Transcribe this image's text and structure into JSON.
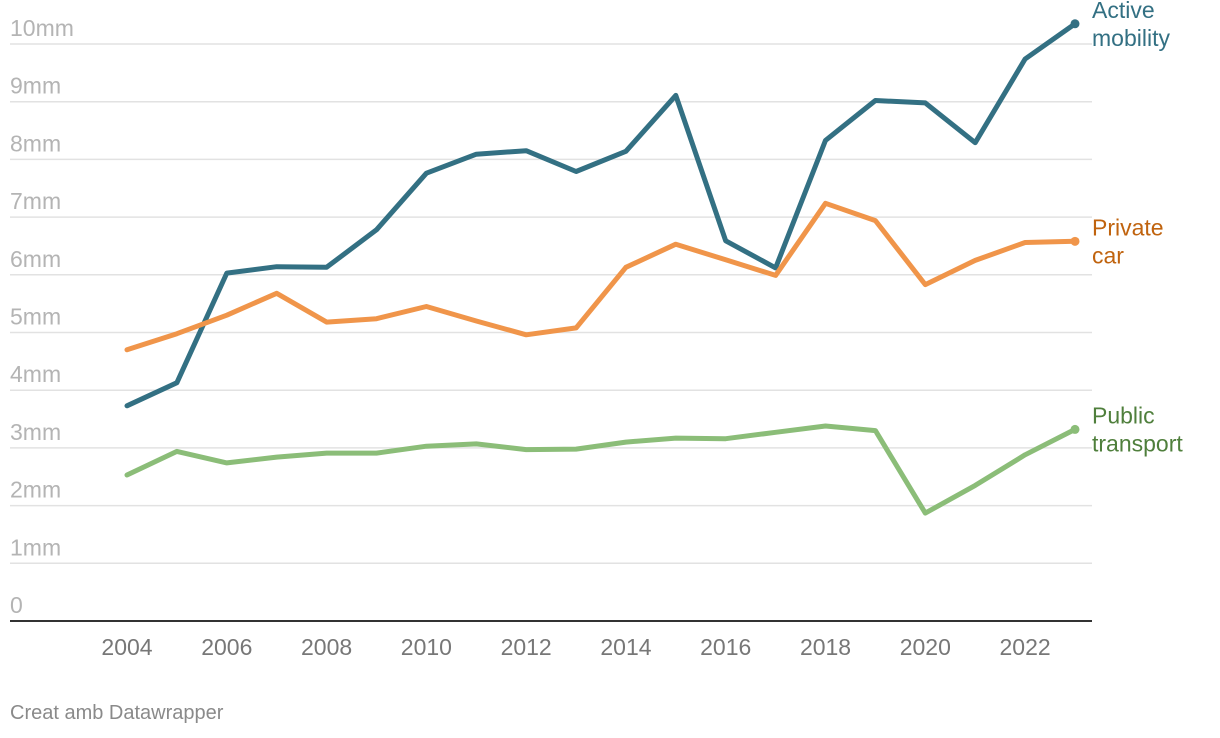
{
  "chart_data": {
    "type": "line",
    "title": "",
    "xlabel": "",
    "ylabel": "",
    "x": [
      2004,
      2005,
      2006,
      2007,
      2008,
      2009,
      2010,
      2011,
      2012,
      2013,
      2014,
      2015,
      2016,
      2017,
      2018,
      2019,
      2020,
      2021,
      2022,
      2023
    ],
    "xlim": [
      2004,
      2023
    ],
    "ylim": [
      0,
      10
    ],
    "x_ticks": [
      "2004",
      "2006",
      "2008",
      "2010",
      "2012",
      "2014",
      "2016",
      "2018",
      "2020",
      "2022"
    ],
    "x_tick_values": [
      2004,
      2006,
      2008,
      2010,
      2012,
      2014,
      2016,
      2018,
      2020,
      2022
    ],
    "y_ticks": [
      "0",
      "1mm",
      "2mm",
      "3mm",
      "4mm",
      "5mm",
      "6mm",
      "7mm",
      "8mm",
      "9mm",
      "10mm"
    ],
    "y_tick_values": [
      0,
      1,
      2,
      3,
      4,
      5,
      6,
      7,
      8,
      9,
      10
    ],
    "grid": true,
    "legend": "direct labels at line ends (right)",
    "series": [
      {
        "name": "Active mobility",
        "label_lines": [
          "Active",
          "mobility"
        ],
        "color": "#337083",
        "label_color": "#337083",
        "values": [
          3.73,
          4.13,
          6.03,
          6.14,
          6.13,
          6.78,
          7.76,
          8.09,
          8.15,
          7.79,
          8.14,
          9.11,
          6.59,
          6.12,
          8.33,
          9.02,
          8.98,
          8.29,
          9.74,
          10.35
        ]
      },
      {
        "name": "Private car",
        "label_lines": [
          "Private",
          "car"
        ],
        "color": "#f0954a",
        "label_color": "#c0630e",
        "values": [
          4.7,
          4.98,
          5.3,
          5.68,
          5.18,
          5.24,
          5.45,
          5.2,
          4.96,
          5.08,
          6.13,
          6.53,
          6.26,
          5.99,
          7.24,
          6.94,
          5.83,
          6.25,
          6.56,
          6.58
        ]
      },
      {
        "name": "Public transport",
        "label_lines": [
          "Public",
          "transport"
        ],
        "color": "#8bbd78",
        "label_color": "#4f7f3c",
        "values": [
          2.53,
          2.94,
          2.74,
          2.84,
          2.91,
          2.91,
          3.03,
          3.07,
          2.97,
          2.98,
          3.1,
          3.17,
          3.16,
          3.27,
          3.38,
          3.3,
          1.87,
          2.35,
          2.88,
          3.32
        ]
      }
    ]
  },
  "footer": {
    "credit": "Creat amb Datawrapper"
  }
}
